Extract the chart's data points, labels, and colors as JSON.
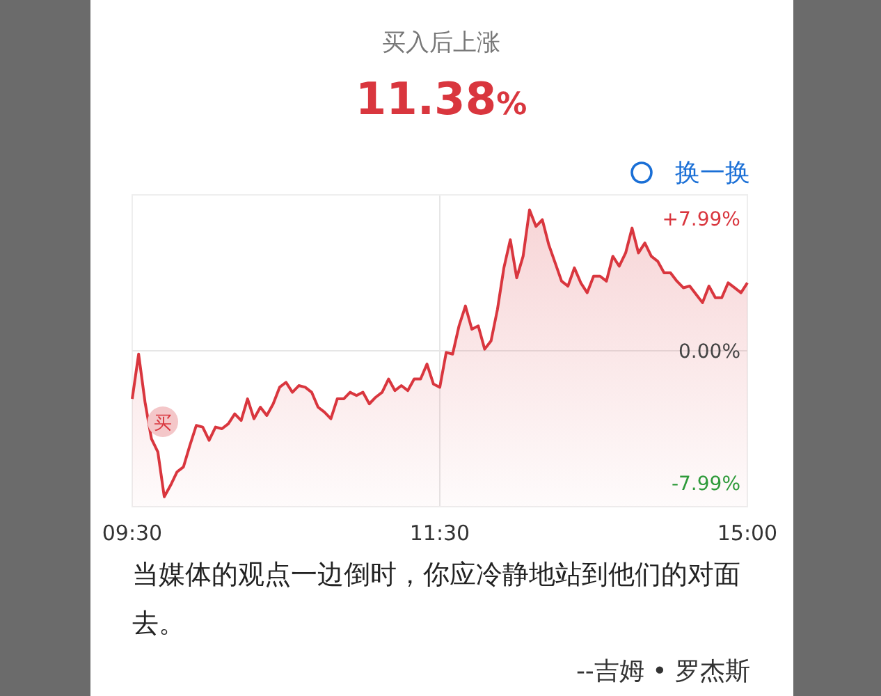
{
  "chart_data": {
    "type": "line",
    "title": "买入后上涨",
    "subtitle": "11.38%",
    "color": "#d9363e",
    "categories": [
      "09:30",
      null,
      null,
      null,
      null,
      null,
      null,
      null,
      null,
      null,
      null,
      null,
      null,
      null,
      null,
      null,
      null,
      null,
      null,
      null,
      null,
      null,
      null,
      null,
      null,
      null,
      null,
      null,
      null,
      null,
      null,
      null,
      null,
      null,
      null,
      null,
      null,
      null,
      null,
      null,
      null,
      null,
      null,
      null,
      null,
      null,
      null,
      null,
      "11:30",
      null,
      null,
      null,
      null,
      null,
      null,
      null,
      null,
      null,
      null,
      null,
      null,
      null,
      null,
      null,
      null,
      null,
      null,
      null,
      null,
      null,
      null,
      null,
      null,
      null,
      null,
      null,
      null,
      null,
      null,
      null,
      null,
      null,
      null,
      null,
      null,
      null,
      null,
      null,
      null,
      null,
      null,
      null,
      null,
      null,
      null,
      null,
      "15:00"
    ],
    "values": [
      -2.9,
      -0.2,
      -3.1,
      -5.3,
      -6.1,
      -8.8,
      -8.1,
      -7.3,
      -7.0,
      -5.7,
      -4.5,
      -4.6,
      -5.4,
      -4.6,
      -4.7,
      -4.4,
      -3.8,
      -4.2,
      -2.9,
      -4.1,
      -3.4,
      -3.9,
      -3.2,
      -2.2,
      -1.9,
      -2.5,
      -2.1,
      -2.2,
      -2.5,
      -3.4,
      -3.7,
      -4.1,
      -2.9,
      -2.9,
      -2.5,
      -2.7,
      -2.5,
      -3.2,
      -2.8,
      -2.5,
      -1.7,
      -2.4,
      -2.1,
      -2.4,
      -1.7,
      -1.7,
      -0.8,
      -2.0,
      -2.2,
      -0.1,
      -0.2,
      1.5,
      2.7,
      1.3,
      1.5,
      0.1,
      0.6,
      2.5,
      5.0,
      6.7,
      4.4,
      5.7,
      8.5,
      7.5,
      7.9,
      6.4,
      5.3,
      4.2,
      3.9,
      5.0,
      4.1,
      3.5,
      4.5,
      4.5,
      4.2,
      5.7,
      5.1,
      5.9,
      7.4,
      5.9,
      6.5,
      5.7,
      5.4,
      4.7,
      4.7,
      4.2,
      3.8,
      3.9,
      3.4,
      2.9,
      3.9,
      3.2,
      3.2,
      4.1,
      3.8,
      3.5,
      4.1
    ],
    "ylim": [
      -9.4,
      9.4
    ],
    "yticks": [
      {
        "value": 7.99,
        "label": "+7.99%"
      },
      {
        "value": 0,
        "label": "0.00%"
      },
      {
        "value": -7.99,
        "label": "-7.99%"
      }
    ],
    "grid": "x",
    "ref_lines": [
      {
        "axis": "y",
        "value": 0,
        "color": "#e6e6e6"
      }
    ],
    "annotations": [
      "换一换",
      "买",
      "当媒体的观点一边倒时，你应冷静地站到他们的对面去。",
      "--吉姆 • 罗杰斯"
    ]
  }
}
